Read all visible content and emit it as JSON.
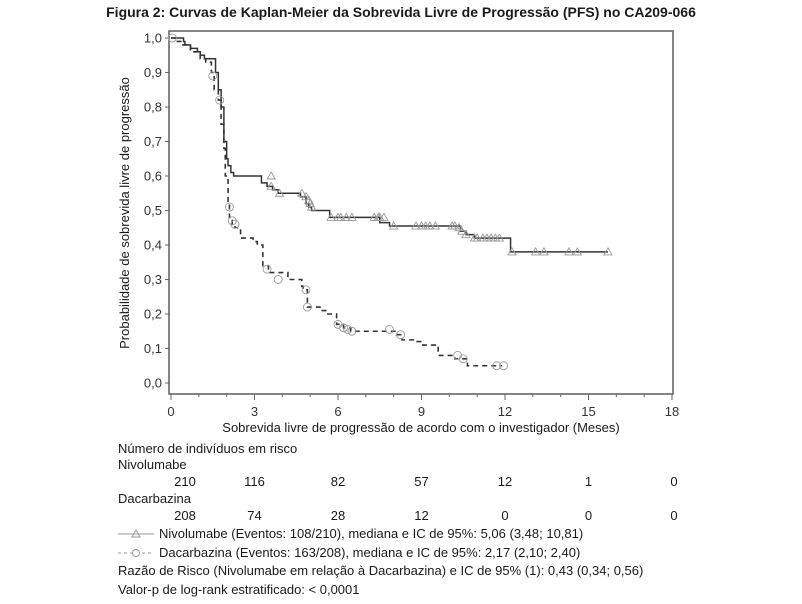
{
  "title": "Figura 2: Curvas de Kaplan-Meier da Sobrevida Livre de Progressão (PFS) no CA209-066",
  "chart_data": {
    "type": "line",
    "subtype": "kaplan-meier step",
    "title": "Figura 2: Curvas de Kaplan-Meier da Sobrevida Livre de Progressão (PFS) no CA209-066",
    "xlabel": "Sobrevida livre de progressão de acordo com o investigador (Meses)",
    "ylabel": "Probabilidade de sobrevida livre de progressão",
    "xlim": [
      0,
      18
    ],
    "ylim": [
      0,
      1
    ],
    "xticks": [
      0,
      3,
      6,
      9,
      12,
      15,
      18
    ],
    "xtick_labels": [
      "0",
      "3",
      "6",
      "9",
      "12",
      "15",
      "18"
    ],
    "yticks": [
      0,
      0.1,
      0.2,
      0.3,
      0.4,
      0.5,
      0.6,
      0.7,
      0.8,
      0.9,
      1.0
    ],
    "ytick_labels": [
      "0,0",
      "0,1",
      "0,2",
      "0,3",
      "0,4",
      "0,5",
      "0,6",
      "0,7",
      "0,8",
      "0,9",
      "1,0"
    ],
    "grid": false,
    "series": [
      {
        "name": "Nivolumabe",
        "style": "solid",
        "marker": "triangle",
        "color": "#333333",
        "x": [
          0,
          0.45,
          0.5,
          0.7,
          0.95,
          1.05,
          1.2,
          1.6,
          1.7,
          1.8,
          1.9,
          2.0,
          2.05,
          2.15,
          2.25,
          2.35,
          3.25,
          3.45,
          3.65,
          3.85,
          4.65,
          4.85,
          4.95,
          5.05,
          5.7,
          7.5,
          7.85,
          10.4,
          10.6,
          10.9,
          12.2,
          15.7
        ],
        "y": [
          1.0,
          0.99,
          0.98,
          0.97,
          0.96,
          0.95,
          0.94,
          0.9,
          0.85,
          0.8,
          0.7,
          0.65,
          0.63,
          0.61,
          0.6,
          0.6,
          0.58,
          0.57,
          0.56,
          0.55,
          0.54,
          0.52,
          0.51,
          0.5,
          0.48,
          0.465,
          0.455,
          0.44,
          0.43,
          0.42,
          0.38,
          0.38
        ],
        "censored_x": [
          3.6,
          3.6,
          3.9,
          4.7,
          4.85,
          4.95,
          5.0,
          5.05,
          5.75,
          6.0,
          6.1,
          6.3,
          6.5,
          7.3,
          7.45,
          7.5,
          7.65,
          8.0,
          8.8,
          9.0,
          9.15,
          9.3,
          9.5,
          10.1,
          10.2,
          10.35,
          10.45,
          10.6,
          10.9,
          11.0,
          11.2,
          11.35,
          11.5,
          11.65,
          11.8,
          12.25,
          13.1,
          13.4,
          14.3,
          14.6,
          15.7
        ],
        "censored_y": [
          0.6,
          0.57,
          0.55,
          0.55,
          0.54,
          0.53,
          0.52,
          0.51,
          0.48,
          0.48,
          0.48,
          0.48,
          0.48,
          0.48,
          0.48,
          0.48,
          0.48,
          0.455,
          0.455,
          0.455,
          0.455,
          0.455,
          0.455,
          0.455,
          0.455,
          0.45,
          0.44,
          0.43,
          0.42,
          0.42,
          0.42,
          0.42,
          0.42,
          0.42,
          0.42,
          0.38,
          0.38,
          0.38,
          0.38,
          0.38,
          0.38
        ]
      },
      {
        "name": "Dacarbazina",
        "style": "dashed",
        "marker": "circle",
        "color": "#333333",
        "x": [
          0,
          0.15,
          0.35,
          0.7,
          1.05,
          1.25,
          1.45,
          1.55,
          1.7,
          1.8,
          1.9,
          1.95,
          2.05,
          2.1,
          2.2,
          2.3,
          2.5,
          2.95,
          3.1,
          3.3,
          3.5,
          4.2,
          4.7,
          4.75,
          4.9,
          5.35,
          5.6,
          5.95,
          6.2,
          6.45,
          8.1,
          8.3,
          8.8,
          9.05,
          9.6,
          10.2,
          10.65,
          11.9
        ],
        "y": [
          1.0,
          0.99,
          0.98,
          0.96,
          0.94,
          0.93,
          0.9,
          0.85,
          0.82,
          0.75,
          0.68,
          0.6,
          0.52,
          0.48,
          0.46,
          0.45,
          0.42,
          0.41,
          0.4,
          0.34,
          0.32,
          0.3,
          0.28,
          0.27,
          0.22,
          0.21,
          0.2,
          0.17,
          0.16,
          0.15,
          0.14,
          0.125,
          0.12,
          0.11,
          0.08,
          0.07,
          0.05,
          0.05
        ],
        "censored_x": [
          0.05,
          1.5,
          1.75,
          2.1,
          2.2,
          2.3,
          3.45,
          3.85,
          4.85,
          4.9,
          6.0,
          6.2,
          6.35,
          6.5,
          7.85,
          8.25,
          10.3,
          10.5,
          11.7,
          11.95
        ],
        "censored_y": [
          1.0,
          0.89,
          0.82,
          0.51,
          0.47,
          0.46,
          0.33,
          0.3,
          0.27,
          0.22,
          0.17,
          0.16,
          0.155,
          0.15,
          0.155,
          0.14,
          0.08,
          0.07,
          0.05,
          0.05
        ]
      }
    ],
    "legend": [
      {
        "series": "Nivolumabe",
        "text": "Nivolumabe (Eventos: 108/210), mediana e IC de 95%: 5,06 (3,48; 10,81)"
      },
      {
        "series": "Dacarbazina",
        "text": "Dacarbazina (Eventos: 163/208), mediana e IC de 95%: 2,17 (2,10; 2,40)"
      }
    ],
    "legend_placement": "bottom"
  },
  "risk_table": {
    "title": "Número de indivíduos em risco",
    "groups": [
      {
        "name": "Nivolumabe",
        "values": [
          "210",
          "116",
          "82",
          "57",
          "12",
          "1",
          "0"
        ]
      },
      {
        "name": "Dacarbazina",
        "values": [
          "208",
          "74",
          "28",
          "12",
          "0",
          "0",
          "0"
        ]
      }
    ]
  },
  "stats": {
    "hazard_ratio": "Razão de Risco (Nivolumabe em relação à Dacarbazina) e IC de 95% (1): 0,43 (0,34; 0,56)",
    "p_value": "Valor-p de log-rank estratificado: < 0,0001"
  }
}
